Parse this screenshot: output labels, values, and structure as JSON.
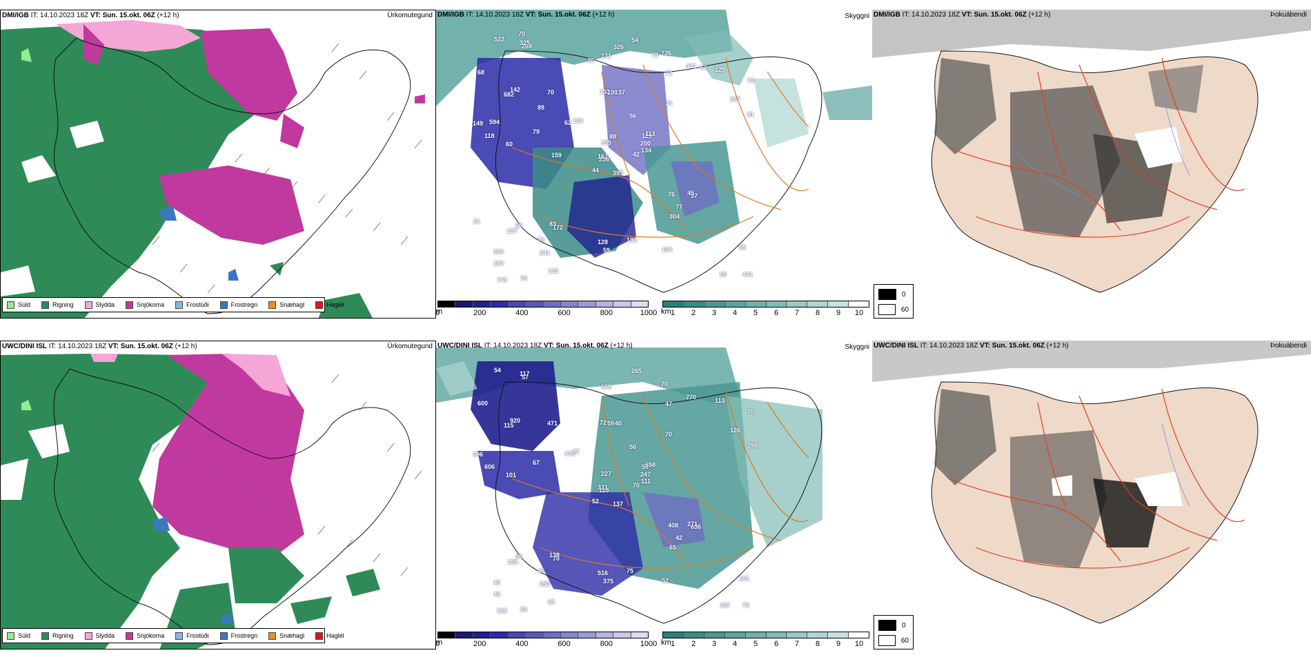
{
  "rows": [
    {
      "model": "DMI/IGB",
      "it": "IT: 14.10.2023 18Z",
      "vt_label": "VT:",
      "vt": "Sun. 15.okt. 06Z",
      "lead": "(+12 h)"
    },
    {
      "model": "UWC/DINI ISL",
      "it": "IT: 14.10.2023 18Z",
      "vt_label": "VT:",
      "vt": "Sun. 15.okt. 06Z",
      "lead": "(+12 h)"
    }
  ],
  "panel_types": {
    "precip": "Úrkomutegund",
    "cloud": "Skyggni",
    "fog": "Þokuábendi"
  },
  "precip_legend": [
    {
      "label": "Súld",
      "color": "#90ee90"
    },
    {
      "label": "Rigning",
      "color": "#2e8b57"
    },
    {
      "label": "Slydda",
      "color": "#f4a6d7"
    },
    {
      "label": "Snjókoma",
      "color": "#c0399e"
    },
    {
      "label": "Frostúði",
      "color": "#87b5e8"
    },
    {
      "label": "Frostregn",
      "color": "#3a78c2"
    },
    {
      "label": "Snæhagl",
      "color": "#f08c1c"
    },
    {
      "label": "Haglél",
      "color": "#e0141e"
    }
  ],
  "colorbar_m": {
    "unit": "m",
    "ticks": [
      "0",
      "200",
      "400",
      "600",
      "800",
      "1000"
    ],
    "colors": [
      "#000000",
      "#191970",
      "#20208f",
      "#2c2ca8",
      "#4848b0",
      "#5a5ab8",
      "#6e6ec4",
      "#8686cc",
      "#9a9ad6",
      "#b4b4e0",
      "#c8c8e8",
      "#dcdcf2"
    ]
  },
  "colorbar_km": {
    "unit": "km",
    "ticks": [
      "1",
      "2",
      "3",
      "4",
      "5",
      "6",
      "7",
      "8",
      "9",
      "10"
    ],
    "colors": [
      "#2a7f7a",
      "#3b8c86",
      "#4a9892",
      "#5ba49e",
      "#6eb0aa",
      "#82bcb6",
      "#98c9c4",
      "#aed6d2",
      "#c6e3e0",
      "#ffffff"
    ]
  },
  "fog_legend": [
    {
      "label": "0",
      "color": "#000000"
    },
    {
      "label": "60",
      "color": "#ffffff"
    }
  ],
  "labels_top": [
    "395",
    "682",
    "256",
    "386",
    "129",
    "172",
    "726",
    "137",
    "72",
    "42",
    "264",
    "441",
    "60",
    "73",
    "44",
    "74",
    "76",
    "153",
    "56",
    "68",
    "123",
    "180",
    "341",
    "100",
    "113",
    "57",
    "142",
    "171",
    "118",
    "76",
    "81",
    "167",
    "128",
    "155",
    "70",
    "472",
    "83",
    "65",
    "55",
    "45",
    "54",
    "62",
    "79",
    "304",
    "123",
    "149",
    "200",
    "743",
    "59",
    "134",
    "227",
    "227",
    "68",
    "77",
    "104",
    "79",
    "325",
    "522",
    "182",
    "129",
    "326",
    "159",
    "594",
    "89",
    "67",
    "70",
    "73",
    "70",
    "88",
    "21"
  ],
  "labels_bottom": [
    "137",
    "115",
    "110",
    "45",
    "50",
    "70",
    "70",
    "40",
    "47",
    "70",
    "57",
    "73",
    "101",
    "70",
    "52",
    "70",
    "59",
    "72",
    "56",
    "59",
    "37",
    "46",
    "250",
    "59",
    "658",
    "656",
    "920",
    "668",
    "606",
    "408",
    "298",
    "371",
    "516",
    "227",
    "471",
    "770",
    "138",
    "187",
    "161",
    "271",
    "265",
    "436",
    "67",
    "65",
    "63",
    "396",
    "247",
    "325",
    "375",
    "111",
    "188",
    "126",
    "600",
    "42",
    "52",
    "45",
    "117",
    "54",
    "75",
    "113"
  ]
}
